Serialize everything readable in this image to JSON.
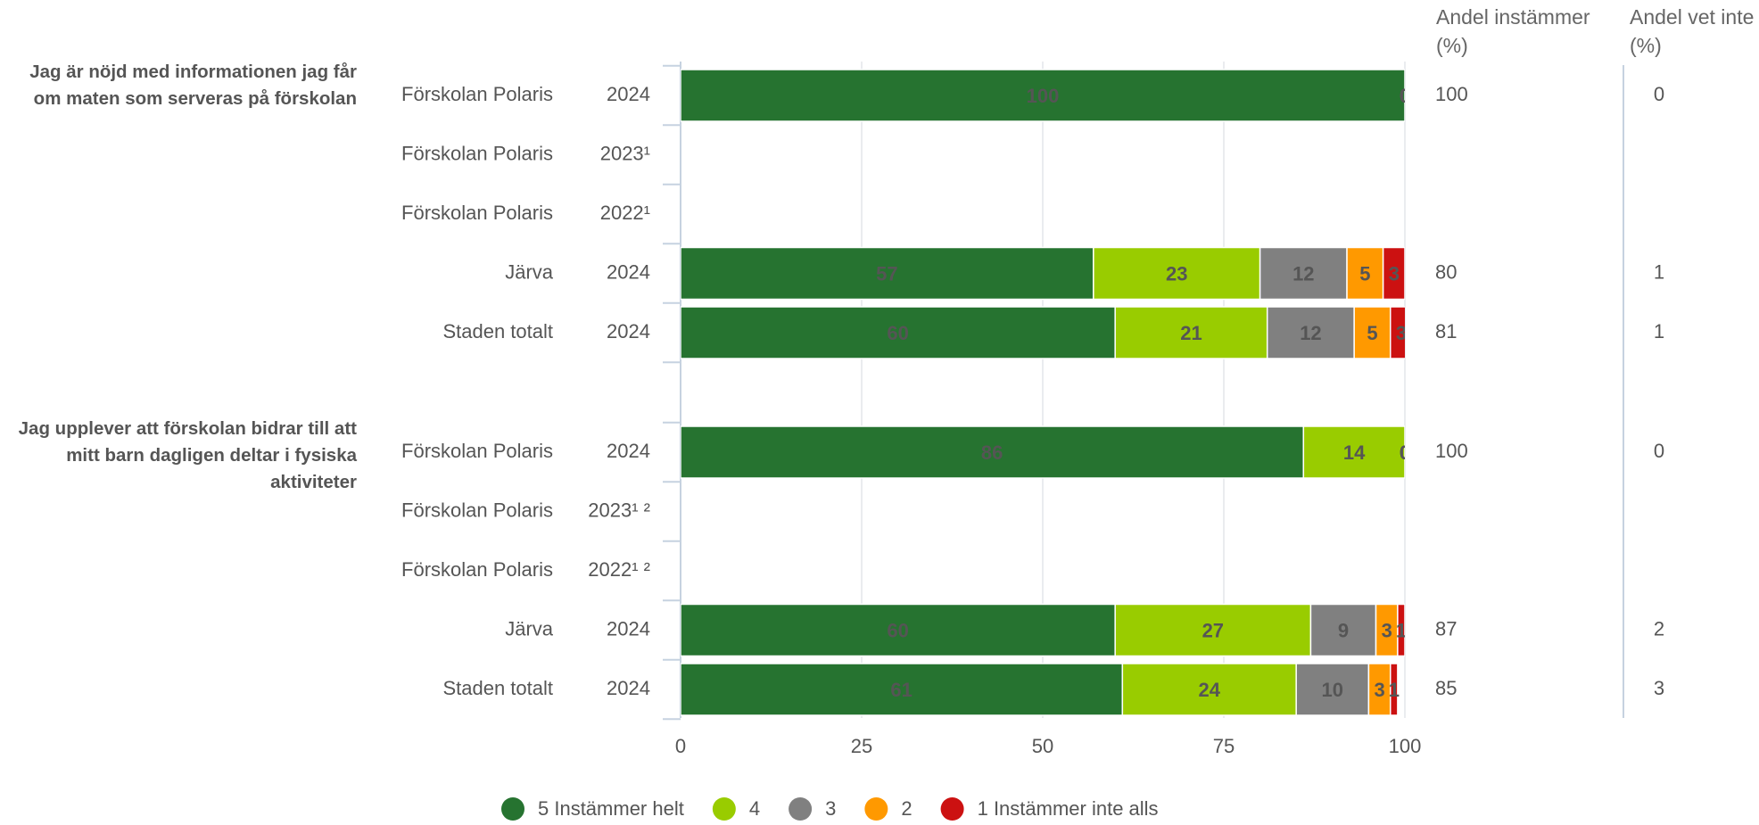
{
  "chart_data": {
    "type": "bar",
    "orientation": "horizontal",
    "stacked": true,
    "legend": [
      {
        "name": "5 Instämmer helt",
        "color": "#267330"
      },
      {
        "name": "4",
        "color": "#99cc00"
      },
      {
        "name": "3",
        "color": "#808080"
      },
      {
        "name": "2",
        "color": "#ff9900"
      },
      {
        "name": "1 Instämmer inte alls",
        "color": "#cc1111"
      }
    ],
    "column_headers": [
      "Andel instämmer (%)",
      "Andel vet inte (%)"
    ],
    "groups": [
      {
        "title": "Jag är nöjd med informationen jag får om maten som serveras på förskolan",
        "categories": [
          "Förskolan Polaris",
          "Förskolan Polaris",
          "Förskolan Polaris",
          "Järva",
          "Staden totalt"
        ],
        "years": [
          "2024",
          "2023¹",
          "2022¹",
          "2024",
          "2024"
        ],
        "series": [
          {
            "values": [
              100,
              null,
              null,
              57,
              60
            ]
          },
          {
            "values": [
              0,
              null,
              null,
              23,
              21
            ]
          },
          {
            "values": [
              0,
              null,
              null,
              12,
              12
            ]
          },
          {
            "values": [
              0,
              null,
              null,
              5,
              5
            ]
          },
          {
            "values": [
              0,
              null,
              null,
              3,
              3
            ]
          }
        ],
        "share_agree": [
          100,
          null,
          null,
          80,
          81
        ],
        "share_dont_know": [
          0,
          null,
          null,
          1,
          1
        ]
      },
      {
        "title": "Jag upplever att förskolan bidrar till att mitt barn dagligen deltar i fysiska aktiviteter",
        "categories": [
          "Förskolan Polaris",
          "Förskolan Polaris",
          "Förskolan Polaris",
          "Järva",
          "Staden totalt"
        ],
        "years": [
          "2024",
          "2023¹ ²",
          "2022¹ ²",
          "2024",
          "2024"
        ],
        "series": [
          {
            "values": [
              86,
              null,
              null,
              60,
              61
            ]
          },
          {
            "values": [
              14,
              null,
              null,
              27,
              24
            ]
          },
          {
            "values": [
              0,
              null,
              null,
              9,
              10
            ]
          },
          {
            "values": [
              0,
              null,
              null,
              3,
              3
            ]
          },
          {
            "values": [
              0,
              null,
              null,
              1,
              1
            ]
          }
        ],
        "share_agree": [
          100,
          null,
          null,
          87,
          85
        ],
        "share_dont_know": [
          0,
          null,
          null,
          2,
          3
        ]
      }
    ],
    "xlim": [
      0,
      100
    ],
    "xticks": [
      0,
      25,
      50,
      75,
      100
    ],
    "grid": true
  }
}
